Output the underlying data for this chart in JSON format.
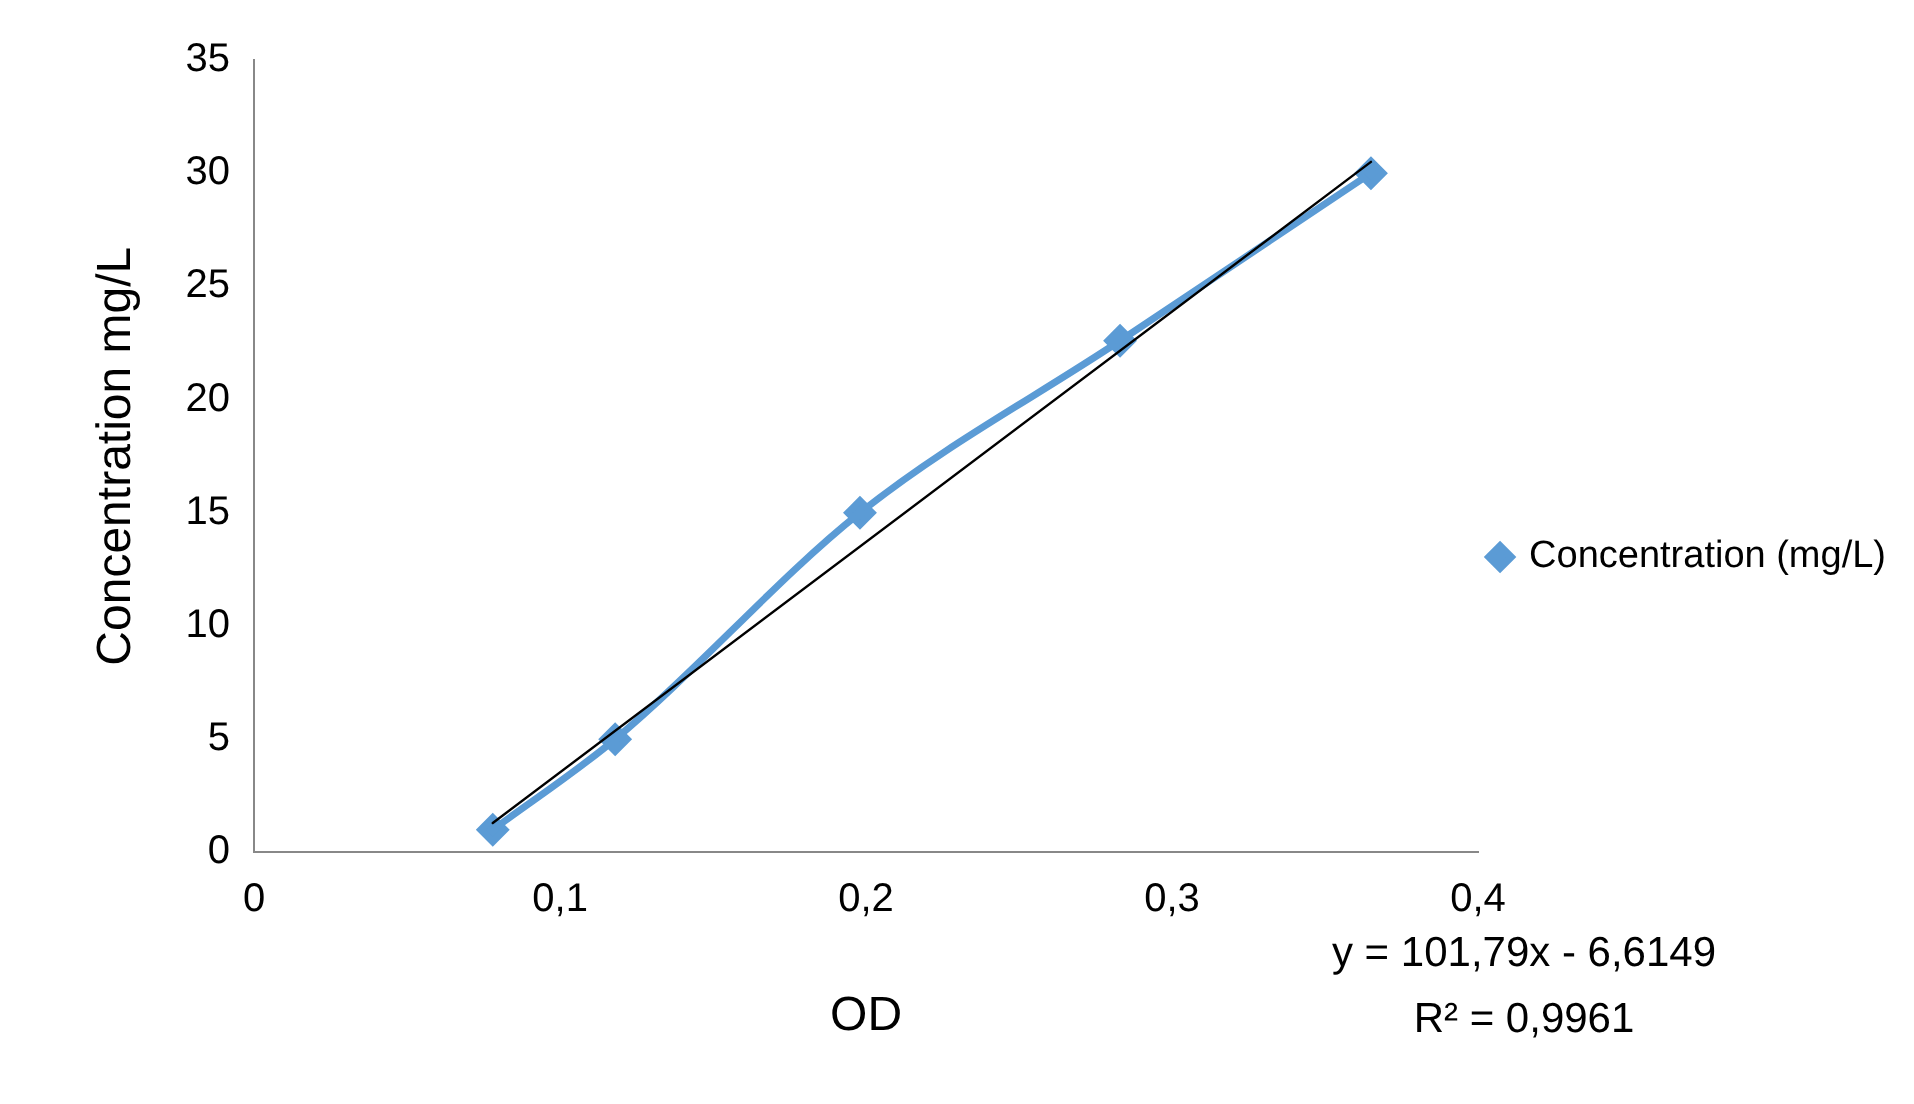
{
  "chart_data": {
    "type": "line",
    "xlabel": "OD",
    "ylabel": "Concentration mg/L",
    "xlim": [
      0,
      0.4
    ],
    "xticks": [
      0,
      {
        "value": 0.1,
        "label": "0,1"
      },
      {
        "value": 0.2,
        "label": "0,2"
      },
      {
        "value": 0.3,
        "label": "0,3"
      },
      {
        "value": 0.4,
        "label": "0,4"
      }
    ],
    "ylim": [
      0,
      35
    ],
    "yticks": [
      0,
      5,
      10,
      15,
      20,
      25,
      30,
      35
    ],
    "grid": false,
    "legend": "right",
    "marker": "diamond",
    "line_style": "solid",
    "series": [
      {
        "name": "Concentration (mg/L)",
        "color": "#5b9bd5",
        "x": [
          0.078,
          0.118,
          0.198,
          0.283,
          0.365
        ],
        "values": [
          1,
          5,
          15,
          22.6,
          30
        ]
      },
      {
        "type": "line",
        "color": "#000000",
        "marker": "none",
        "x": [
          0.078,
          0.365
        ],
        "values": [
          1.3,
          30.5
        ]
      }
    ],
    "annotations": [
      "y = 101,79x - 6,6149",
      "R² = 0,9961"
    ]
  }
}
